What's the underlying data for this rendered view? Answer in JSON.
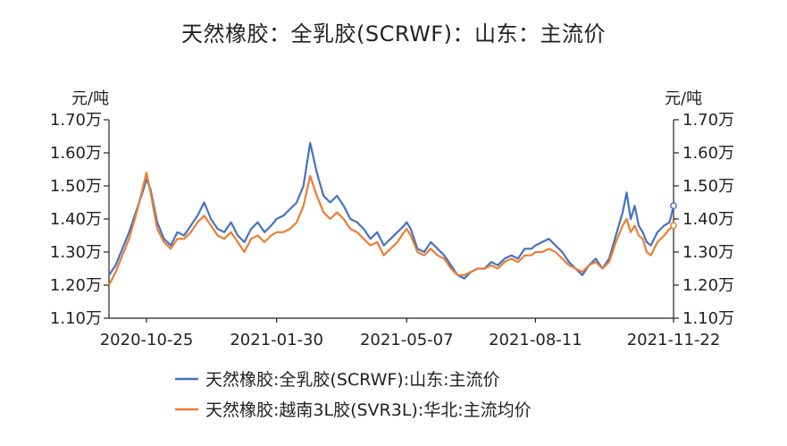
{
  "chart_data": {
    "type": "line",
    "title": "天然橡胶：全乳胶(SCRWF)：山东：主流价",
    "ylabel_left": "元/吨",
    "ylabel_right": "元/吨",
    "ylim": [
      11000,
      17000
    ],
    "yticks": [
      {
        "value": 17000,
        "label": "1.70万"
      },
      {
        "value": 16000,
        "label": "1.60万"
      },
      {
        "value": 15000,
        "label": "1.50万"
      },
      {
        "value": 14000,
        "label": "1.40万"
      },
      {
        "value": 13000,
        "label": "1.30万"
      },
      {
        "value": 12000,
        "label": "1.20万"
      },
      {
        "value": 11000,
        "label": "1.10万"
      }
    ],
    "xlim": [
      "2020-09-27",
      "2021-11-22"
    ],
    "xticks": [
      {
        "value": "2020-10-25",
        "label": "2020-10-25"
      },
      {
        "value": "2021-01-30",
        "label": "2021-01-30"
      },
      {
        "value": "2021-05-07",
        "label": "2021-05-07"
      },
      {
        "value": "2021-08-11",
        "label": "2021-08-11"
      },
      {
        "value": "2021-11-22",
        "label": "2021-11-22"
      }
    ],
    "legend_position": "bottom",
    "series": [
      {
        "name": "天然橡胶:全乳胶(SCRWF):山东:主流价",
        "color": "#4472C4",
        "points": [
          [
            "2020-09-27",
            12300
          ],
          [
            "2020-10-02",
            12600
          ],
          [
            "2020-10-07",
            13100
          ],
          [
            "2020-10-12",
            13600
          ],
          [
            "2020-10-17",
            14200
          ],
          [
            "2020-10-22",
            14800
          ],
          [
            "2020-10-25",
            15200
          ],
          [
            "2020-10-28",
            14900
          ],
          [
            "2020-11-02",
            13900
          ],
          [
            "2020-11-07",
            13400
          ],
          [
            "2020-11-12",
            13200
          ],
          [
            "2020-11-17",
            13600
          ],
          [
            "2020-11-22",
            13500
          ],
          [
            "2020-11-27",
            13800
          ],
          [
            "2020-12-02",
            14100
          ],
          [
            "2020-12-07",
            14500
          ],
          [
            "2020-12-12",
            14000
          ],
          [
            "2020-12-17",
            13700
          ],
          [
            "2020-12-22",
            13600
          ],
          [
            "2020-12-27",
            13900
          ],
          [
            "2021-01-01",
            13500
          ],
          [
            "2021-01-06",
            13300
          ],
          [
            "2021-01-11",
            13700
          ],
          [
            "2021-01-16",
            13900
          ],
          [
            "2021-01-21",
            13600
          ],
          [
            "2021-01-26",
            13800
          ],
          [
            "2021-01-30",
            14000
          ],
          [
            "2021-02-04",
            14100
          ],
          [
            "2021-02-09",
            14300
          ],
          [
            "2021-02-14",
            14500
          ],
          [
            "2021-02-19",
            15000
          ],
          [
            "2021-02-24",
            16300
          ],
          [
            "2021-03-01",
            15400
          ],
          [
            "2021-03-06",
            14700
          ],
          [
            "2021-03-11",
            14500
          ],
          [
            "2021-03-16",
            14700
          ],
          [
            "2021-03-21",
            14400
          ],
          [
            "2021-03-26",
            14000
          ],
          [
            "2021-03-31",
            13900
          ],
          [
            "2021-04-05",
            13700
          ],
          [
            "2021-04-10",
            13400
          ],
          [
            "2021-04-15",
            13600
          ],
          [
            "2021-04-20",
            13200
          ],
          [
            "2021-04-25",
            13400
          ],
          [
            "2021-04-30",
            13600
          ],
          [
            "2021-05-05",
            13800
          ],
          [
            "2021-05-07",
            13900
          ],
          [
            "2021-05-10",
            13700
          ],
          [
            "2021-05-15",
            13100
          ],
          [
            "2021-05-20",
            13000
          ],
          [
            "2021-05-25",
            13300
          ],
          [
            "2021-05-30",
            13100
          ],
          [
            "2021-06-04",
            12900
          ],
          [
            "2021-06-09",
            12600
          ],
          [
            "2021-06-14",
            12300
          ],
          [
            "2021-06-19",
            12200
          ],
          [
            "2021-06-24",
            12400
          ],
          [
            "2021-06-29",
            12500
          ],
          [
            "2021-07-04",
            12500
          ],
          [
            "2021-07-09",
            12700
          ],
          [
            "2021-07-14",
            12600
          ],
          [
            "2021-07-19",
            12800
          ],
          [
            "2021-07-24",
            12900
          ],
          [
            "2021-07-29",
            12800
          ],
          [
            "2021-08-03",
            13100
          ],
          [
            "2021-08-08",
            13100
          ],
          [
            "2021-08-11",
            13200
          ],
          [
            "2021-08-16",
            13300
          ],
          [
            "2021-08-21",
            13400
          ],
          [
            "2021-08-26",
            13200
          ],
          [
            "2021-08-31",
            13000
          ],
          [
            "2021-09-05",
            12700
          ],
          [
            "2021-09-10",
            12500
          ],
          [
            "2021-09-15",
            12300
          ],
          [
            "2021-09-20",
            12600
          ],
          [
            "2021-09-25",
            12800
          ],
          [
            "2021-09-30",
            12500
          ],
          [
            "2021-10-05",
            12800
          ],
          [
            "2021-10-10",
            13500
          ],
          [
            "2021-10-15",
            14200
          ],
          [
            "2021-10-18",
            14800
          ],
          [
            "2021-10-21",
            14000
          ],
          [
            "2021-10-24",
            14400
          ],
          [
            "2021-10-27",
            13800
          ],
          [
            "2021-10-30",
            13600
          ],
          [
            "2021-11-02",
            13300
          ],
          [
            "2021-11-05",
            13200
          ],
          [
            "2021-11-10",
            13600
          ],
          [
            "2021-11-15",
            13800
          ],
          [
            "2021-11-19",
            13900
          ],
          [
            "2021-11-22",
            14400
          ]
        ]
      },
      {
        "name": "天然橡胶:越南3L胶(SVR3L):华北:主流均价",
        "color": "#ED7D31",
        "points": [
          [
            "2020-09-27",
            12000
          ],
          [
            "2020-10-02",
            12400
          ],
          [
            "2020-10-07",
            12900
          ],
          [
            "2020-10-12",
            13400
          ],
          [
            "2020-10-17",
            14100
          ],
          [
            "2020-10-22",
            14900
          ],
          [
            "2020-10-25",
            15400
          ],
          [
            "2020-10-28",
            14800
          ],
          [
            "2020-11-02",
            13700
          ],
          [
            "2020-11-07",
            13300
          ],
          [
            "2020-11-12",
            13100
          ],
          [
            "2020-11-17",
            13400
          ],
          [
            "2020-11-22",
            13400
          ],
          [
            "2020-11-27",
            13600
          ],
          [
            "2020-12-02",
            13900
          ],
          [
            "2020-12-07",
            14100
          ],
          [
            "2020-12-12",
            13800
          ],
          [
            "2020-12-17",
            13500
          ],
          [
            "2020-12-22",
            13400
          ],
          [
            "2020-12-27",
            13600
          ],
          [
            "2021-01-01",
            13300
          ],
          [
            "2021-01-06",
            13000
          ],
          [
            "2021-01-11",
            13400
          ],
          [
            "2021-01-16",
            13500
          ],
          [
            "2021-01-21",
            13300
          ],
          [
            "2021-01-26",
            13500
          ],
          [
            "2021-01-30",
            13600
          ],
          [
            "2021-02-04",
            13600
          ],
          [
            "2021-02-09",
            13700
          ],
          [
            "2021-02-14",
            13900
          ],
          [
            "2021-02-19",
            14400
          ],
          [
            "2021-02-24",
            15300
          ],
          [
            "2021-03-01",
            14700
          ],
          [
            "2021-03-06",
            14200
          ],
          [
            "2021-03-11",
            14000
          ],
          [
            "2021-03-16",
            14200
          ],
          [
            "2021-03-21",
            14000
          ],
          [
            "2021-03-26",
            13700
          ],
          [
            "2021-03-31",
            13600
          ],
          [
            "2021-04-05",
            13400
          ],
          [
            "2021-04-10",
            13200
          ],
          [
            "2021-04-15",
            13300
          ],
          [
            "2021-04-20",
            12900
          ],
          [
            "2021-04-25",
            13100
          ],
          [
            "2021-04-30",
            13300
          ],
          [
            "2021-05-05",
            13600
          ],
          [
            "2021-05-07",
            13700
          ],
          [
            "2021-05-10",
            13500
          ],
          [
            "2021-05-15",
            13000
          ],
          [
            "2021-05-20",
            12900
          ],
          [
            "2021-05-25",
            13100
          ],
          [
            "2021-05-30",
            12900
          ],
          [
            "2021-06-04",
            12800
          ],
          [
            "2021-06-09",
            12500
          ],
          [
            "2021-06-14",
            12300
          ],
          [
            "2021-06-19",
            12300
          ],
          [
            "2021-06-24",
            12400
          ],
          [
            "2021-06-29",
            12500
          ],
          [
            "2021-07-04",
            12500
          ],
          [
            "2021-07-09",
            12600
          ],
          [
            "2021-07-14",
            12500
          ],
          [
            "2021-07-19",
            12700
          ],
          [
            "2021-07-24",
            12800
          ],
          [
            "2021-07-29",
            12700
          ],
          [
            "2021-08-03",
            12900
          ],
          [
            "2021-08-08",
            12900
          ],
          [
            "2021-08-11",
            13000
          ],
          [
            "2021-08-16",
            13000
          ],
          [
            "2021-08-21",
            13100
          ],
          [
            "2021-08-26",
            13000
          ],
          [
            "2021-08-31",
            12800
          ],
          [
            "2021-09-05",
            12600
          ],
          [
            "2021-09-10",
            12500
          ],
          [
            "2021-09-15",
            12400
          ],
          [
            "2021-09-20",
            12600
          ],
          [
            "2021-09-25",
            12700
          ],
          [
            "2021-09-30",
            12500
          ],
          [
            "2021-10-05",
            12700
          ],
          [
            "2021-10-10",
            13300
          ],
          [
            "2021-10-15",
            13800
          ],
          [
            "2021-10-18",
            14000
          ],
          [
            "2021-10-21",
            13600
          ],
          [
            "2021-10-24",
            13800
          ],
          [
            "2021-10-27",
            13500
          ],
          [
            "2021-10-30",
            13400
          ],
          [
            "2021-11-02",
            13000
          ],
          [
            "2021-11-05",
            12900
          ],
          [
            "2021-11-10",
            13300
          ],
          [
            "2021-11-15",
            13500
          ],
          [
            "2021-11-19",
            13700
          ],
          [
            "2021-11-22",
            13800
          ]
        ]
      }
    ]
  }
}
